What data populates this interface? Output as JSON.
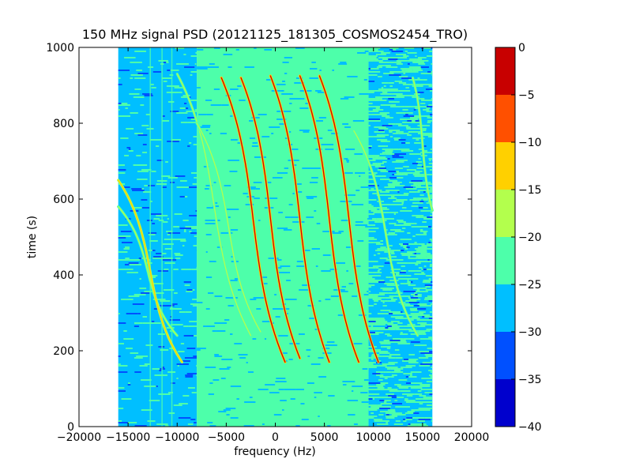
{
  "chart_data": {
    "type": "heatmap",
    "title": "150 MHz signal PSD (20121125_181305_COSMOS2454_TRO)",
    "xlabel": "frequency (Hz)",
    "ylabel": "time (s)",
    "xlim": [
      -20000,
      20000
    ],
    "ylim": [
      0,
      1000
    ],
    "xticks": [
      -20000,
      -15000,
      -10000,
      -5000,
      0,
      5000,
      10000,
      15000,
      20000
    ],
    "xtick_labels": [
      "−20000",
      "−15000",
      "−10000",
      "−5000",
      "0",
      "5000",
      "10000",
      "15000",
      "20000"
    ],
    "yticks": [
      0,
      200,
      400,
      600,
      800,
      1000
    ],
    "ytick_labels": [
      "0",
      "200",
      "400",
      "600",
      "800",
      "1000"
    ],
    "data_extent": {
      "freq_min": -16000,
      "freq_max": 16000,
      "time_min": 0,
      "time_max": 1000
    },
    "noise_regions": [
      {
        "freq_from": -16000,
        "freq_to": -8000,
        "level": "-30 to -25"
      },
      {
        "freq_from": -8000,
        "freq_to": 9500,
        "level": "-25 to -20"
      },
      {
        "freq_from": 9500,
        "freq_to": 16000,
        "level": "-30 to -20 (mixed)"
      }
    ],
    "traces": [
      {
        "freq_at_top": -16000,
        "freq_at_bottom": -10000,
        "t_top": 580,
        "t_bottom": 240,
        "peak_level": "-20 to -15"
      },
      {
        "freq_at_top": -16000,
        "freq_at_bottom": -9500,
        "t_top": 650,
        "t_bottom": 170,
        "peak_level": "-15 to -10"
      },
      {
        "freq_at_top": -10000,
        "freq_at_bottom": -2500,
        "t_top": 930,
        "t_bottom": 240,
        "peak_level": "-20 to -15"
      },
      {
        "freq_at_top": -8000,
        "freq_at_bottom": -1500,
        "t_top": 800,
        "t_bottom": 250,
        "peak_level": "-20 to -15"
      },
      {
        "freq_at_top": -5500,
        "freq_at_bottom": 1000,
        "t_top": 920,
        "t_bottom": 170,
        "peak_level": "-5 to 0"
      },
      {
        "freq_at_top": -3500,
        "freq_at_bottom": 2500,
        "t_top": 920,
        "t_bottom": 180,
        "peak_level": "-5 to 0"
      },
      {
        "freq_at_top": -500,
        "freq_at_bottom": 5500,
        "t_top": 925,
        "t_bottom": 170,
        "peak_level": "-5 to 0"
      },
      {
        "freq_at_top": 2500,
        "freq_at_bottom": 8500,
        "t_top": 925,
        "t_bottom": 170,
        "peak_level": "-5 to 0"
      },
      {
        "freq_at_top": 4500,
        "freq_at_bottom": 10500,
        "t_top": 925,
        "t_bottom": 170,
        "peak_level": "-5 to 0"
      },
      {
        "freq_at_top": 8000,
        "freq_at_bottom": 14500,
        "t_top": 780,
        "t_bottom": 240,
        "peak_level": "-20 to -15"
      },
      {
        "freq_at_top": 14000,
        "freq_at_bottom": 16000,
        "t_top": 920,
        "t_bottom": 570,
        "peak_level": "-20 to -15"
      }
    ],
    "colorbar": {
      "vmin": -40,
      "vmax": 0,
      "ticks": [
        0,
        -5,
        -10,
        -15,
        -20,
        -25,
        -30,
        -35,
        -40
      ],
      "tick_labels": [
        "0",
        "−5",
        "−10",
        "−15",
        "−20",
        "−25",
        "−30",
        "−35",
        "−40"
      ],
      "bands": [
        {
          "from": -40,
          "to": -35,
          "color": "#0000cd"
        },
        {
          "from": -35,
          "to": -30,
          "color": "#0050ff"
        },
        {
          "from": -30,
          "to": -25,
          "color": "#00bfff"
        },
        {
          "from": -25,
          "to": -20,
          "color": "#4dffaa"
        },
        {
          "from": -20,
          "to": -15,
          "color": "#b3ff4d"
        },
        {
          "from": -15,
          "to": -10,
          "color": "#ffd000"
        },
        {
          "from": -10,
          "to": -5,
          "color": "#ff5000"
        },
        {
          "from": -5,
          "to": 0,
          "color": "#c80000"
        }
      ]
    },
    "grid": false,
    "legend": "none",
    "colors": {
      "dark_blue": "#0000cd",
      "blue": "#0050ff",
      "cyan": "#00bfff",
      "green": "#4dffaa",
      "yellowgreen": "#b3ff4d",
      "yellow": "#ffd000",
      "orange": "#ff5000",
      "red": "#c80000"
    }
  }
}
